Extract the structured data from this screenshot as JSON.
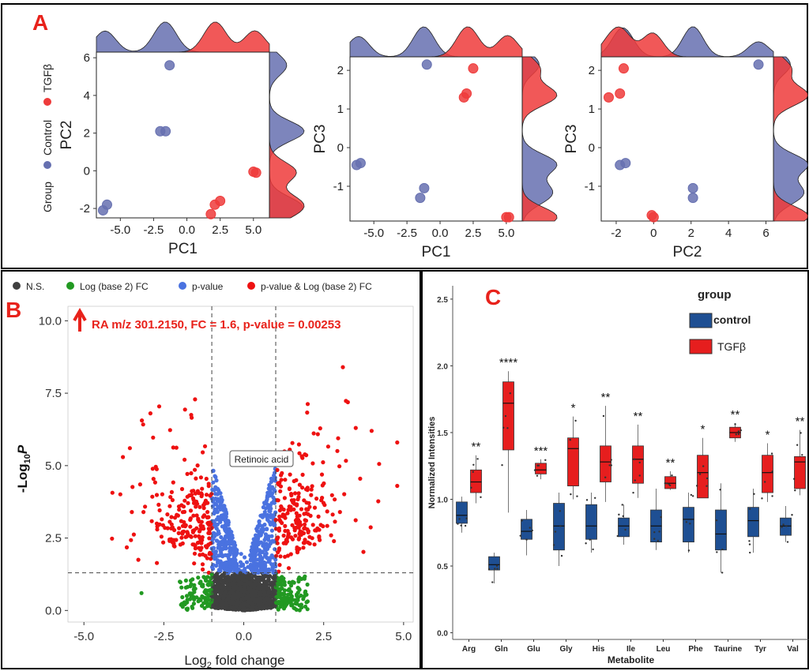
{
  "chart_data": [
    {
      "panel": "A",
      "type": "scatter",
      "subplots": [
        {
          "xlabel": "PC1",
          "ylabel": "PC2",
          "xlim": [
            -6.8,
            6.2
          ],
          "ylim": [
            -2.5,
            6.3
          ],
          "xticks": [
            "-5.0",
            "-2.5",
            "0.0",
            "2.5",
            "5.0"
          ],
          "xtick_values": [
            -5,
            -2.5,
            0,
            2.5,
            5
          ],
          "yticks": [
            "-2",
            "0",
            "2",
            "4",
            "6"
          ],
          "ytick_values": [
            -2,
            0,
            2,
            4,
            6
          ],
          "series": [
            {
              "name": "Control",
              "color": "#6670b0",
              "points": [
                [
                  -6.3,
                  -2.1
                ],
                [
                  -6.0,
                  -1.8
                ],
                [
                  -1.3,
                  5.6
                ],
                [
                  -2.0,
                  2.1
                ],
                [
                  -1.6,
                  2.1
                ]
              ]
            },
            {
              "name": "TGFβ",
              "color": "#ee3b3b",
              "points": [
                [
                  1.8,
                  -2.3
                ],
                [
                  2.1,
                  -1.8
                ],
                [
                  2.5,
                  -1.6
                ],
                [
                  5.0,
                  -0.05
                ],
                [
                  5.2,
                  -0.1
                ]
              ]
            }
          ]
        },
        {
          "xlabel": "PC1",
          "ylabel": "PC3",
          "xlim": [
            -6.8,
            6.2
          ],
          "ylim": [
            -1.9,
            2.35
          ],
          "xticks": [
            "-5.0",
            "-2.5",
            "0.0",
            "2.5",
            "5.0"
          ],
          "xtick_values": [
            -5,
            -2.5,
            0,
            2.5,
            5
          ],
          "yticks": [
            "-1",
            "0",
            "1",
            "2"
          ],
          "ytick_values": [
            -1,
            0,
            1,
            2
          ],
          "series": [
            {
              "name": "Control",
              "color": "#6670b0",
              "points": [
                [
                  -6.3,
                  -0.45
                ],
                [
                  -6.0,
                  -0.4
                ],
                [
                  -1.5,
                  -1.3
                ],
                [
                  -1.2,
                  -1.05
                ],
                [
                  -1.0,
                  2.15
                ]
              ]
            },
            {
              "name": "TGFβ",
              "color": "#ee3b3b",
              "points": [
                [
                  1.8,
                  1.3
                ],
                [
                  2.0,
                  1.4
                ],
                [
                  2.5,
                  2.05
                ],
                [
                  5.0,
                  -1.8
                ],
                [
                  5.2,
                  -1.8
                ]
              ]
            }
          ]
        },
        {
          "xlabel": "PC2",
          "ylabel": "PC3",
          "xlim": [
            -2.8,
            6.4
          ],
          "ylim": [
            -1.9,
            2.35
          ],
          "xticks": [
            "-2",
            "0",
            "2",
            "4",
            "6"
          ],
          "xtick_values": [
            -2,
            0,
            2,
            4,
            6
          ],
          "yticks": [
            "-1",
            "0",
            "1",
            "2"
          ],
          "ytick_values": [
            -1,
            0,
            1,
            2
          ],
          "series": [
            {
              "name": "Control",
              "color": "#6670b0",
              "points": [
                [
                  -1.8,
                  -0.45
                ],
                [
                  -1.5,
                  -0.4
                ],
                [
                  2.1,
                  -1.05
                ],
                [
                  2.1,
                  -1.3
                ],
                [
                  5.6,
                  2.15
                ]
              ]
            },
            {
              "name": "TGFβ",
              "color": "#ee3b3b",
              "points": [
                [
                  -2.4,
                  1.3
                ],
                [
                  -1.8,
                  1.4
                ],
                [
                  -1.6,
                  2.05
                ],
                [
                  -0.1,
                  -1.75
                ],
                [
                  0.0,
                  -1.8
                ]
              ]
            }
          ]
        }
      ],
      "legend": {
        "title": "Group",
        "entries": [
          "Control",
          "TGFβ"
        ]
      }
    },
    {
      "panel": "B",
      "type": "scatter",
      "xlabel": "Log",
      "xlabel_sub": "2",
      "xlabel_rest": " fold change",
      "ylabel": "-Log",
      "ylabel_sub": "10",
      "ylabel_rest": "P",
      "xlim": [
        -5.5,
        5.3
      ],
      "ylim": [
        -0.4,
        10.5
      ],
      "xticks": [
        "-5.0",
        "-2.5",
        "0.0",
        "2.5",
        "5.0"
      ],
      "xtick_values": [
        -5,
        -2.5,
        0,
        2.5,
        5
      ],
      "yticks": [
        "0.0",
        "2.5",
        "5.0",
        "7.5",
        "10.0"
      ],
      "ytick_values": [
        0,
        2.5,
        5,
        7.5,
        10
      ],
      "fc_cutoff": 1,
      "p_cutoff": 1.3,
      "legend": [
        {
          "label": "N.S.",
          "color": "#404040"
        },
        {
          "label": "Log (base 2) FC",
          "color": "#229922"
        },
        {
          "label": "p-value",
          "color": "#4a72e0"
        },
        {
          "label": "p-value & Log (base 2) FC",
          "color": "#ee1111"
        }
      ],
      "highlight_point": {
        "x": 1.6,
        "y": 2.6
      },
      "annotation_label": "Retinoic acid",
      "annotation_text": "RA m/z 301.2150,  FC = 1.6, p-value = 0.00253"
    },
    {
      "panel": "C",
      "type": "box",
      "xlabel": "Metabolite",
      "ylabel": "Normalized Intensities",
      "ylim": [
        -0.05,
        2.6
      ],
      "yticks": [
        "0.0",
        "0.5",
        "1.0",
        "1.5",
        "2.0",
        "2.5"
      ],
      "ytick_values": [
        0,
        0.5,
        1,
        1.5,
        2,
        2.5
      ],
      "legend_title": "group",
      "groups": [
        {
          "name": "control",
          "color": "#1e4f93"
        },
        {
          "name": "TGFβ",
          "color": "#e61e1e"
        }
      ],
      "categories": [
        "Arg",
        "Gln",
        "Glu",
        "Gly",
        "His",
        "Ile",
        "Leu",
        "Phe",
        "Taurine",
        "Tyr",
        "Val"
      ],
      "control": [
        [
          0.75,
          0.82,
          0.88,
          0.98,
          1.02
        ],
        [
          0.37,
          0.47,
          0.51,
          0.57,
          0.6
        ],
        [
          0.58,
          0.7,
          0.76,
          0.85,
          0.92
        ],
        [
          0.5,
          0.62,
          0.8,
          0.97,
          1.05
        ],
        [
          0.6,
          0.7,
          0.8,
          0.96,
          1.05
        ],
        [
          0.66,
          0.72,
          0.8,
          0.86,
          0.96
        ],
        [
          0.62,
          0.68,
          0.8,
          0.92,
          1.08
        ],
        [
          0.6,
          0.68,
          0.85,
          0.94,
          1.05
        ],
        [
          0.45,
          0.62,
          0.74,
          0.92,
          1.12
        ],
        [
          0.6,
          0.72,
          0.84,
          0.94,
          1.08
        ],
        [
          0.68,
          0.73,
          0.8,
          0.86,
          0.95
        ]
      ],
      "tgfb": [
        [
          0.97,
          1.05,
          1.13,
          1.22,
          1.33
        ],
        [
          0.9,
          1.37,
          1.72,
          1.88,
          1.96
        ],
        [
          1.15,
          1.19,
          1.22,
          1.27,
          1.3
        ],
        [
          1.0,
          1.1,
          1.38,
          1.46,
          1.62
        ],
        [
          0.98,
          1.13,
          1.28,
          1.4,
          1.7
        ],
        [
          1.01,
          1.12,
          1.3,
          1.4,
          1.56
        ],
        [
          1.07,
          1.08,
          1.12,
          1.17,
          1.21
        ],
        [
          1.04,
          1.01,
          1.2,
          1.33,
          1.46
        ],
        [
          1.43,
          1.46,
          1.5,
          1.54,
          1.57
        ],
        [
          0.98,
          1.05,
          1.2,
          1.33,
          1.42
        ],
        [
          1.03,
          1.08,
          1.28,
          1.32,
          1.52
        ]
      ],
      "significance": [
        "**",
        "****",
        "***",
        "*",
        "**",
        "**",
        "**",
        "*",
        "**",
        "*",
        "**"
      ]
    }
  ],
  "labels": {
    "panel_a": "A",
    "panel_b": "B",
    "panel_c": "C"
  }
}
